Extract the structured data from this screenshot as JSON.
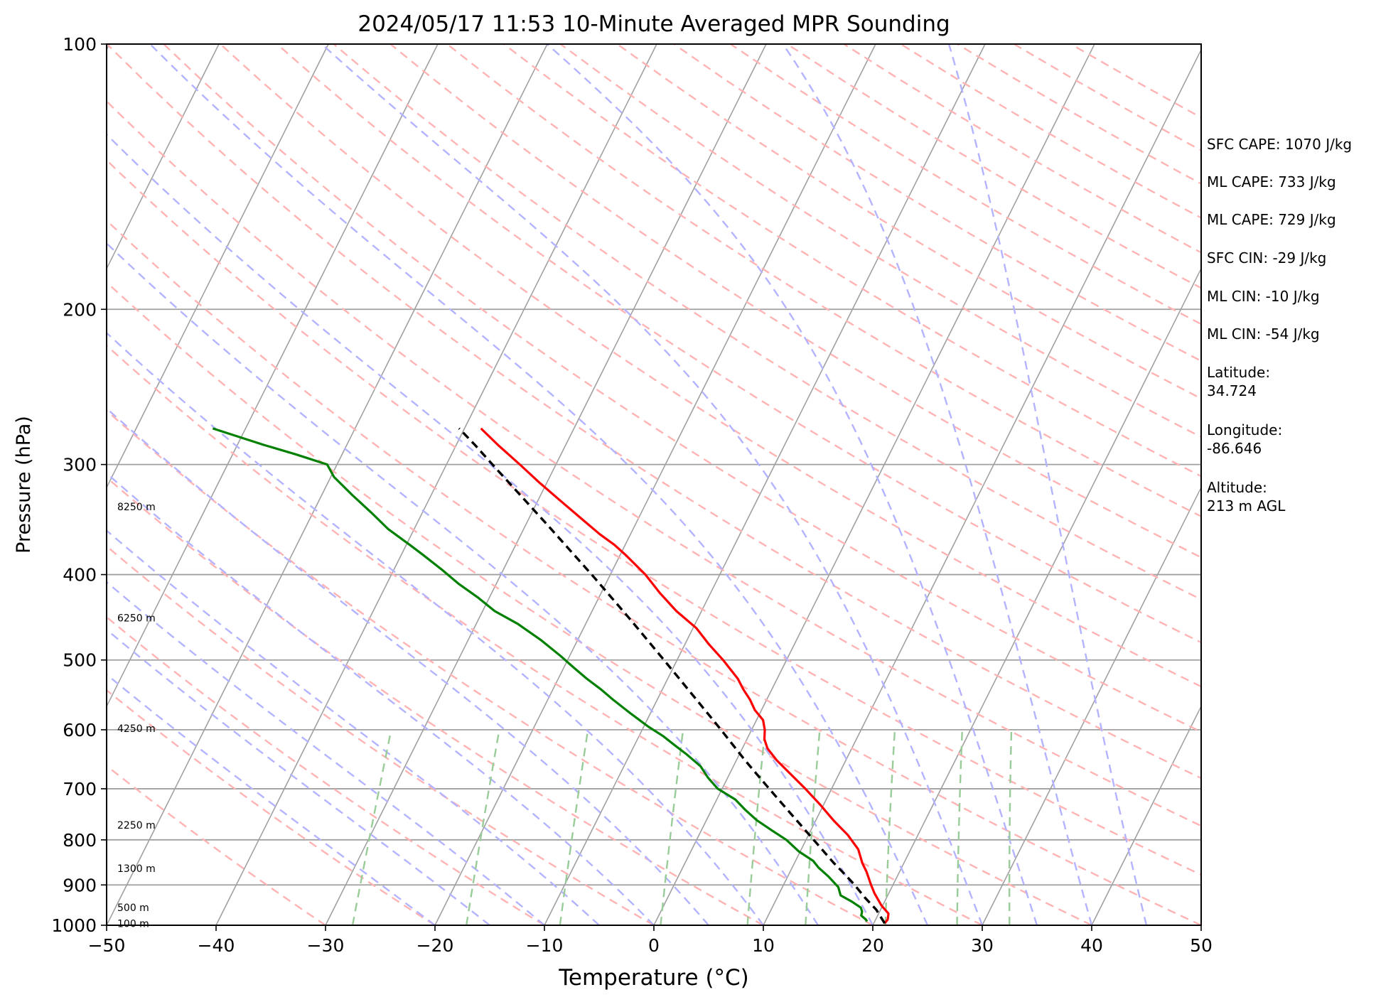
{
  "chart_data": {
    "type": "line",
    "title": "2024/05/17 11:53 10-Minute Averaged MPR Sounding",
    "xlabel": "Temperature (°C)",
    "ylabel": "Pressure (hPa)",
    "xlim": [
      -50,
      50
    ],
    "ylim": [
      1000,
      100
    ],
    "y_scale": "log",
    "skew": "skew-T log-p diagram",
    "grid": true,
    "x_ticks": [
      "−50",
      "−40",
      "−30",
      "−20",
      "−10",
      "0",
      "10",
      "20",
      "30",
      "40",
      "50"
    ],
    "y_ticks": [
      "100",
      "200",
      "300",
      "400",
      "500",
      "600",
      "700",
      "800",
      "900",
      "1000"
    ],
    "height_labels": [
      {
        "p": 995,
        "text": "100 m"
      },
      {
        "p": 955,
        "text": "500 m"
      },
      {
        "p": 862,
        "text": "1300 m"
      },
      {
        "p": 770,
        "text": "2250 m"
      },
      {
        "p": 598,
        "text": "4250 m"
      },
      {
        "p": 448,
        "text": "6250 m"
      },
      {
        "p": 335,
        "text": "8250 m"
      }
    ],
    "series": [
      {
        "key": "temperature",
        "color": "#ff0000",
        "points": [
          {
            "p": 995,
            "t": 21.0
          },
          {
            "p": 985,
            "t": 21.1
          },
          {
            "p": 970,
            "t": 20.9
          },
          {
            "p": 950,
            "t": 19.9
          },
          {
            "p": 920,
            "t": 18.7
          },
          {
            "p": 900,
            "t": 18.0
          },
          {
            "p": 870,
            "t": 17.0
          },
          {
            "p": 850,
            "t": 16.2
          },
          {
            "p": 820,
            "t": 15.2
          },
          {
            "p": 790,
            "t": 13.6
          },
          {
            "p": 760,
            "t": 11.6
          },
          {
            "p": 730,
            "t": 9.7
          },
          {
            "p": 700,
            "t": 7.6
          },
          {
            "p": 670,
            "t": 5.3
          },
          {
            "p": 650,
            "t": 3.7
          },
          {
            "p": 630,
            "t": 2.3
          },
          {
            "p": 615,
            "t": 1.6
          },
          {
            "p": 600,
            "t": 1.2
          },
          {
            "p": 585,
            "t": 0.6
          },
          {
            "p": 570,
            "t": -0.6
          },
          {
            "p": 555,
            "t": -1.5
          },
          {
            "p": 540,
            "t": -2.6
          },
          {
            "p": 525,
            "t": -3.6
          },
          {
            "p": 500,
            "t": -5.8
          },
          {
            "p": 480,
            "t": -7.8
          },
          {
            "p": 460,
            "t": -9.7
          },
          {
            "p": 440,
            "t": -12.3
          },
          {
            "p": 420,
            "t": -14.6
          },
          {
            "p": 400,
            "t": -16.8
          },
          {
            "p": 380,
            "t": -19.5
          },
          {
            "p": 370,
            "t": -21.0
          },
          {
            "p": 360,
            "t": -22.8
          },
          {
            "p": 345,
            "t": -25.3
          },
          {
            "p": 330,
            "t": -27.9
          },
          {
            "p": 315,
            "t": -30.6
          },
          {
            "p": 300,
            "t": -33.3
          },
          {
            "p": 285,
            "t": -36.2
          },
          {
            "p": 273,
            "t": -38.5
          }
        ]
      },
      {
        "key": "dewpoint",
        "color": "#008000",
        "points": [
          {
            "p": 990,
            "t": 19.3
          },
          {
            "p": 985,
            "t": 19.1
          },
          {
            "p": 975,
            "t": 18.5
          },
          {
            "p": 965,
            "t": 18.4
          },
          {
            "p": 955,
            "t": 18.1
          },
          {
            "p": 940,
            "t": 17.0
          },
          {
            "p": 925,
            "t": 15.7
          },
          {
            "p": 905,
            "t": 15.1
          },
          {
            "p": 880,
            "t": 13.7
          },
          {
            "p": 860,
            "t": 12.4
          },
          {
            "p": 845,
            "t": 11.6
          },
          {
            "p": 825,
            "t": 9.9
          },
          {
            "p": 800,
            "t": 8.2
          },
          {
            "p": 780,
            "t": 6.4
          },
          {
            "p": 760,
            "t": 4.6
          },
          {
            "p": 740,
            "t": 3.1
          },
          {
            "p": 720,
            "t": 1.7
          },
          {
            "p": 700,
            "t": -0.4
          },
          {
            "p": 680,
            "t": -1.8
          },
          {
            "p": 660,
            "t": -3.0
          },
          {
            "p": 640,
            "t": -4.8
          },
          {
            "p": 625,
            "t": -6.3
          },
          {
            "p": 610,
            "t": -7.8
          },
          {
            "p": 595,
            "t": -9.6
          },
          {
            "p": 575,
            "t": -11.8
          },
          {
            "p": 555,
            "t": -14.0
          },
          {
            "p": 540,
            "t": -15.6
          },
          {
            "p": 525,
            "t": -17.4
          },
          {
            "p": 510,
            "t": -19.1
          },
          {
            "p": 495,
            "t": -20.8
          },
          {
            "p": 475,
            "t": -23.3
          },
          {
            "p": 455,
            "t": -26.2
          },
          {
            "p": 440,
            "t": -28.9
          },
          {
            "p": 425,
            "t": -31.0
          },
          {
            "p": 410,
            "t": -33.4
          },
          {
            "p": 395,
            "t": -35.6
          },
          {
            "p": 380,
            "t": -38.0
          },
          {
            "p": 370,
            "t": -39.7
          },
          {
            "p": 355,
            "t": -42.4
          },
          {
            "p": 340,
            "t": -44.7
          },
          {
            "p": 325,
            "t": -47.2
          },
          {
            "p": 310,
            "t": -49.7
          },
          {
            "p": 300,
            "t": -50.9
          },
          {
            "p": 292,
            "t": -54.3
          },
          {
            "p": 285,
            "t": -57.6
          },
          {
            "p": 273,
            "t": -63.0
          }
        ]
      },
      {
        "key": "parcel",
        "color": "#000000",
        "dashed": true,
        "points": [
          {
            "p": 995,
            "t": 21.0
          },
          {
            "p": 960,
            "t": 19.6
          },
          {
            "p": 930,
            "t": 18.0
          },
          {
            "p": 900,
            "t": 16.5
          },
          {
            "p": 870,
            "t": 14.8
          },
          {
            "p": 850,
            "t": 13.6
          },
          {
            "p": 800,
            "t": 10.7
          },
          {
            "p": 750,
            "t": 7.6
          },
          {
            "p": 700,
            "t": 4.3
          },
          {
            "p": 650,
            "t": 0.8
          },
          {
            "p": 600,
            "t": -2.8
          },
          {
            "p": 550,
            "t": -6.8
          },
          {
            "p": 500,
            "t": -11.2
          },
          {
            "p": 450,
            "t": -16.1
          },
          {
            "p": 400,
            "t": -21.7
          },
          {
            "p": 350,
            "t": -28.2
          },
          {
            "p": 300,
            "t": -35.8
          },
          {
            "p": 285,
            "t": -38.3
          },
          {
            "p": 273,
            "t": -40.5
          }
        ]
      }
    ]
  },
  "side_info": [
    {
      "key": "sfc_cape",
      "text": "SFC CAPE: 1070 J/kg"
    },
    {
      "key": "ml_cape_1",
      "text": "ML CAPE: 733 J/kg"
    },
    {
      "key": "ml_cape_2",
      "text": "ML CAPE: 729 J/kg"
    },
    {
      "key": "sfc_cin",
      "text": "SFC CIN: -29 J/kg"
    },
    {
      "key": "ml_cin_1",
      "text": "ML CIN: -10 J/kg"
    },
    {
      "key": "ml_cin_2",
      "text": "ML CIN: -54 J/kg"
    },
    {
      "key": "latitude",
      "text": "Latitude:\n34.724"
    },
    {
      "key": "longitude",
      "text": "Longitude:\n-86.646"
    },
    {
      "key": "altitude",
      "text": "Altitude:\n213 m AGL"
    }
  ],
  "colors": {
    "temperature": "#ff0000",
    "dewpoint": "#008000",
    "parcel": "#000000",
    "dry_adiabat": "#ffb3b3",
    "moist_adiabat": "#b3b3ff",
    "mixing_ratio": "#99cc99",
    "isotherm": "#a0a0a0",
    "isobar": "#a0a0a0"
  }
}
